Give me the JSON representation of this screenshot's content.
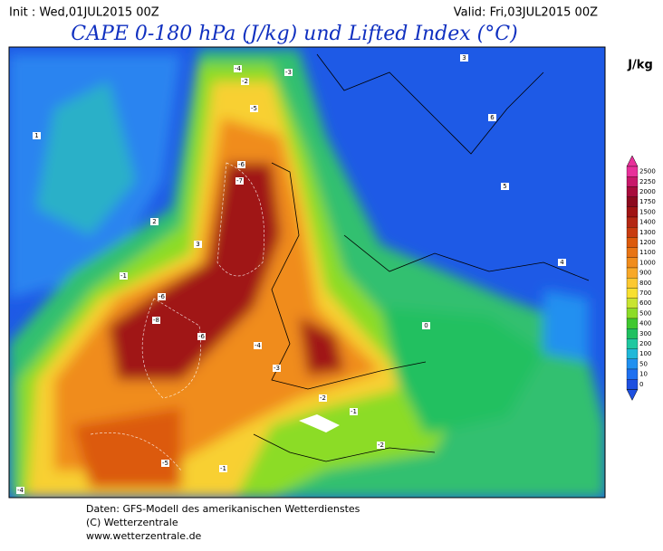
{
  "header": {
    "init": "Init : Wed,01JUL2015 00Z",
    "valid": "Valid: Fri,03JUL2015 00Z",
    "title": "CAPE 0-180 hPa (J/kg) und Lifted Index (°C)"
  },
  "legend": {
    "unit": "J/kg",
    "levels": [
      2500,
      2250,
      2000,
      1750,
      1500,
      1400,
      1300,
      1200,
      1100,
      1000,
      900,
      800,
      700,
      600,
      500,
      400,
      300,
      200,
      100,
      50,
      10,
      0
    ],
    "colors": [
      "#e8309a",
      "#c8186a",
      "#a80c3c",
      "#8c0a1e",
      "#a01414",
      "#b42814",
      "#c83c10",
      "#dc5a0c",
      "#e87414",
      "#f08c1c",
      "#f8a828",
      "#fcc830",
      "#f8e030",
      "#c8e430",
      "#8cdc28",
      "#40c830",
      "#20c060",
      "#20c8a0",
      "#20b8d8",
      "#2090f0",
      "#1e70f0",
      "#1e50e0"
    ]
  },
  "map": {
    "contour_labels": [
      "-4",
      "-2",
      "-5",
      "-6",
      "-7",
      "-3",
      "-1",
      "-6",
      "-8",
      "-6",
      "-4",
      "-3",
      "-2",
      "-1",
      "0",
      "1",
      "2",
      "3",
      "4",
      "5",
      "6",
      "3",
      "-4",
      "-2",
      "-5",
      "-1"
    ]
  },
  "footer": {
    "source": "Daten: GFS-Modell des amerikanischen Wetterdienstes",
    "copyright": "(C) Wetterzentrale",
    "url": "www.wetterzentrale.de"
  }
}
